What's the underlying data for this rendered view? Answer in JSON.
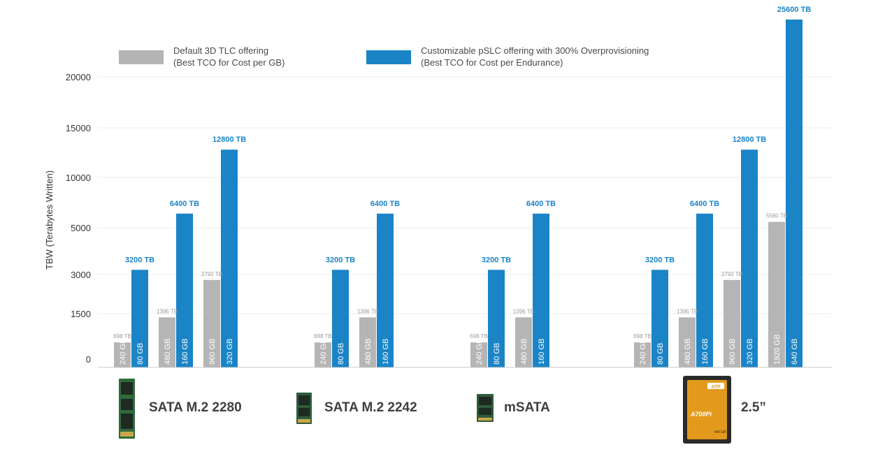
{
  "chart_data": {
    "type": "bar",
    "ylabel": "TBW (Terabytes Written)",
    "y_ticks": [
      "0",
      "1500",
      "3000",
      "5000",
      "10000",
      "15000",
      "20000"
    ],
    "y_scale": "non-linear (piecewise)",
    "grid": true,
    "legend": {
      "placement": "top",
      "entries": [
        {
          "line1": "Default 3D TLC offering",
          "line2": "(Best TCO for Cost per GB)",
          "color": "#b5b5b5"
        },
        {
          "line1": "Customizable pSLC offering with 300% Overprovisioning",
          "line2": "(Best TCO for Cost per Endurance)",
          "color": "#1a84c7"
        }
      ]
    },
    "groups": [
      {
        "product": "SATA M.2 2280",
        "pairs": [
          {
            "tlc_capacity": "240 GB",
            "tlc_tbw": 698,
            "tlc_label": "698 TB",
            "pslc_capacity": "80 GB",
            "pslc_tbw": 3200,
            "pslc_label": "3200 TB"
          },
          {
            "tlc_capacity": "480 GB",
            "tlc_tbw": 1396,
            "tlc_label": "1396 TB",
            "pslc_capacity": "160 GB",
            "pslc_tbw": 6400,
            "pslc_label": "6400 TB"
          },
          {
            "tlc_capacity": "960 GB",
            "tlc_tbw": 2792,
            "tlc_label": "2792 TB",
            "pslc_capacity": "320 GB",
            "pslc_tbw": 12800,
            "pslc_label": "12800 TB"
          }
        ]
      },
      {
        "product": "SATA M.2 2242",
        "pairs": [
          {
            "tlc_capacity": "240 GB",
            "tlc_tbw": 698,
            "tlc_label": "698 TB",
            "pslc_capacity": "80 GB",
            "pslc_tbw": 3200,
            "pslc_label": "3200 TB"
          },
          {
            "tlc_capacity": "480 GB",
            "tlc_tbw": 1396,
            "tlc_label": "1396 TB",
            "pslc_capacity": "160 GB",
            "pslc_tbw": 6400,
            "pslc_label": "6400 TB"
          }
        ]
      },
      {
        "product": "mSATA",
        "pairs": [
          {
            "tlc_capacity": "240 GB",
            "tlc_tbw": 698,
            "tlc_label": "698 TB",
            "pslc_capacity": "80 GB",
            "pslc_tbw": 3200,
            "pslc_label": "3200 TB"
          },
          {
            "tlc_capacity": "480 GB",
            "tlc_tbw": 1396,
            "tlc_label": "1396 TB",
            "pslc_capacity": "160 GB",
            "pslc_tbw": 6400,
            "pslc_label": "6400 TB"
          }
        ]
      },
      {
        "product": "2.5”",
        "pairs": [
          {
            "tlc_capacity": "240 GB",
            "tlc_tbw": 698,
            "tlc_label": "698 TB",
            "pslc_capacity": "80 GB",
            "pslc_tbw": 3200,
            "pslc_label": "3200 TB"
          },
          {
            "tlc_capacity": "480 GB",
            "tlc_tbw": 1396,
            "tlc_label": "1396 TB",
            "pslc_capacity": "160 GB",
            "pslc_tbw": 6400,
            "pslc_label": "6400 TB"
          },
          {
            "tlc_capacity": "960 GB",
            "tlc_tbw": 2792,
            "tlc_label": "2792 TB",
            "pslc_capacity": "320 GB",
            "pslc_tbw": 12800,
            "pslc_label": "12800 TB"
          },
          {
            "tlc_capacity": "1920 GB",
            "tlc_tbw": 5580,
            "tlc_label": "5580 TB",
            "pslc_capacity": "640 GB",
            "pslc_tbw": 25600,
            "pslc_label": "25600 TB"
          }
        ]
      }
    ]
  },
  "products": {
    "m2_2280_icon": "m2-2280-module-icon",
    "m2_2242_icon": "m2-2242-module-icon",
    "msata_icon": "msata-module-icon",
    "ssd25_icon": "ssd-2-5-inch-drive-icon",
    "ssd25_brand": "ATP",
    "ssd25_model": "A700Pi",
    "ssd25_capacity": "640 GB"
  }
}
